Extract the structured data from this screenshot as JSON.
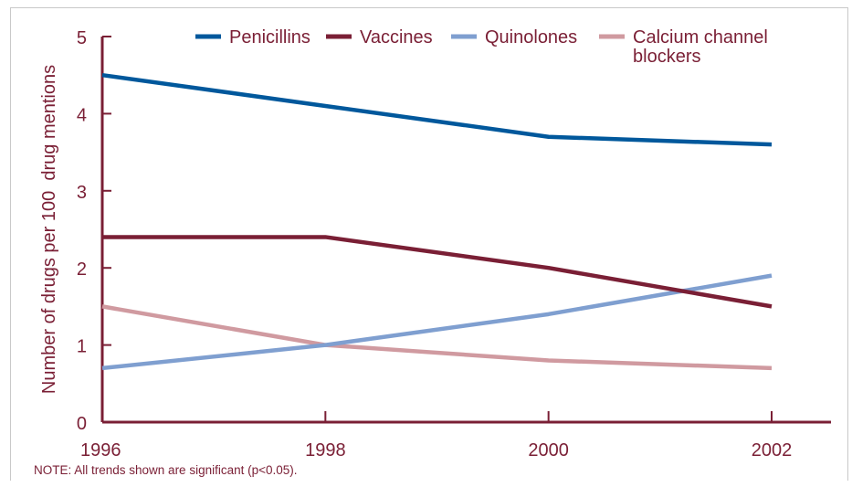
{
  "chart_data": {
    "type": "line",
    "x": [
      1996,
      1998,
      2000,
      2002
    ],
    "xticks": [
      "1996",
      "1998",
      "2000",
      "2002"
    ],
    "ylabel": "Number of drugs per 100  drug mentions",
    "xlabel": "",
    "ylim": [
      0,
      5
    ],
    "yticks": [
      "0",
      "1",
      "2",
      "3",
      "4",
      "5"
    ],
    "legend_position": "top",
    "axis_color": "#7a1f35",
    "series": [
      {
        "name": "Penicillins",
        "color": "#00589c",
        "values": [
          4.5,
          4.1,
          3.7,
          3.6
        ]
      },
      {
        "name": "Vaccines",
        "color": "#7a1f35",
        "values": [
          2.4,
          2.4,
          2.0,
          1.5
        ]
      },
      {
        "name": "Quinolones",
        "color": "#7f9fd0",
        "values": [
          0.7,
          1.0,
          1.4,
          1.9
        ]
      },
      {
        "name": "Calcium channel blockers",
        "name_lines": [
          "Calcium channel",
          "blockers"
        ],
        "color": "#d09aa0",
        "values": [
          1.5,
          1.0,
          0.8,
          0.7
        ]
      }
    ]
  },
  "note": "NOTE: All trends shown are significant (p<0.05)."
}
